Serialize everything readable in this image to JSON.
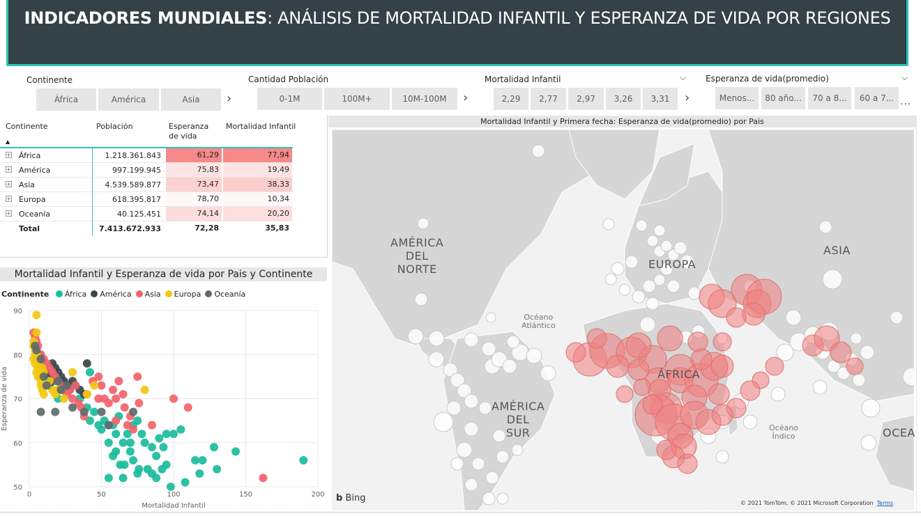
{
  "header": {
    "title_bold": "INDICADORES MUNDIALES",
    "title_rest": ": ANÁLISIS DE MORTALIDAD INFANTIL Y ESPERANZA DE VIDA POR REGIONES"
  },
  "slicers": {
    "continente": {
      "label": "Continente",
      "items": [
        "África",
        "América",
        "Asia"
      ]
    },
    "poblacion": {
      "label": "Cantidad Población",
      "items": [
        "0-1M",
        "100M+",
        "10M-100M"
      ]
    },
    "mortalidad": {
      "label": "Mortalidad Infantil",
      "items": [
        "2,29",
        "2,77",
        "2,97",
        "3,26",
        "3,31"
      ]
    },
    "esperanza": {
      "label": "Esperanza de vida(promedio)",
      "items": [
        "Menos...",
        "80 año...",
        "70 a 8...",
        "60 a 7..."
      ]
    },
    "next_icon": "chevron-right-icon",
    "dropdown_icon": "chevron-down-icon",
    "more_icon": "..."
  },
  "table": {
    "headers": [
      "Continente",
      "Población",
      "Esperanza de vida",
      "Mortalidad Infantil"
    ],
    "rows": [
      {
        "name": "África",
        "pop": "1.218.361.843",
        "esp": "61,29",
        "mort": "77,94",
        "esp_shade": 1.0,
        "mort_shade": 1.0
      },
      {
        "name": "América",
        "pop": "997.199.945",
        "esp": "75,83",
        "mort": "19,49",
        "esp_shade": 0.18,
        "mort_shade": 0.18
      },
      {
        "name": "Asia",
        "pop": "4.539.589.877",
        "esp": "73,47",
        "mort": "38,33",
        "esp_shade": 0.35,
        "mort_shade": 0.38
      },
      {
        "name": "Europa",
        "pop": "618.395.817",
        "esp": "78,70",
        "mort": "10,34",
        "esp_shade": 0.0,
        "mort_shade": 0.0
      },
      {
        "name": "Oceanía",
        "pop": "40.125.451",
        "esp": "74,14",
        "mort": "20,20",
        "esp_shade": 0.25,
        "mort_shade": 0.22
      }
    ],
    "total": {
      "name": "Total",
      "pop": "7.413.672.933",
      "esp": "72,28",
      "mort": "35,83"
    },
    "shade_color": "#f46b6b"
  },
  "scatter": {
    "title": "Mortalidad Infantil y Esperanza de vida por Pais y Continente",
    "legend_title": "Continente"
  },
  "chart_data": {
    "type": "scatter",
    "title": "Mortalidad Infantil y Esperanza de vida por Pais y Continente",
    "xlabel": "Mortalidad Infantil",
    "ylabel": "Esperanza de vida",
    "xlim": [
      0,
      200
    ],
    "ylim": [
      50,
      90
    ],
    "xticks": [
      0,
      50,
      100,
      150,
      200
    ],
    "yticks": [
      50,
      60,
      70,
      80,
      90
    ],
    "grid": true,
    "legend_position": "top-left",
    "series": [
      {
        "name": "África",
        "color": "#1abc9c",
        "points": [
          [
            8,
            77
          ],
          [
            12,
            75
          ],
          [
            18,
            74
          ],
          [
            22,
            72
          ],
          [
            28,
            73
          ],
          [
            35,
            70
          ],
          [
            40,
            68
          ],
          [
            42,
            65
          ],
          [
            45,
            67
          ],
          [
            48,
            64
          ],
          [
            50,
            63
          ],
          [
            52,
            65
          ],
          [
            55,
            64
          ],
          [
            55,
            60
          ],
          [
            55,
            52
          ],
          [
            58,
            64
          ],
          [
            60,
            62
          ],
          [
            60,
            58
          ],
          [
            62,
            66
          ],
          [
            63,
            55
          ],
          [
            65,
            60
          ],
          [
            65,
            52
          ],
          [
            68,
            62
          ],
          [
            70,
            58
          ],
          [
            70,
            60
          ],
          [
            72,
            56
          ],
          [
            72,
            64
          ],
          [
            75,
            65
          ],
          [
            76,
            54
          ],
          [
            78,
            62
          ],
          [
            80,
            60
          ],
          [
            82,
            54
          ],
          [
            85,
            59
          ],
          [
            85,
            53
          ],
          [
            88,
            52
          ],
          [
            88,
            57
          ],
          [
            90,
            61
          ],
          [
            92,
            54
          ],
          [
            93,
            59
          ],
          [
            95,
            62
          ],
          [
            95,
            55
          ],
          [
            98,
            50
          ],
          [
            100,
            62
          ],
          [
            105,
            63
          ],
          [
            108,
            51
          ],
          [
            115,
            56
          ],
          [
            118,
            53
          ],
          [
            120,
            56
          ],
          [
            128,
            59
          ],
          [
            130,
            54
          ],
          [
            143,
            58
          ],
          [
            190,
            56
          ],
          [
            58,
            57
          ],
          [
            66,
            55
          ],
          [
            75,
            53
          ],
          [
            42,
            76
          ],
          [
            20,
            70
          ]
        ]
      },
      {
        "name": "América",
        "color": "#374649",
        "points": [
          [
            5,
            79
          ],
          [
            7,
            80
          ],
          [
            8,
            78
          ],
          [
            10,
            77
          ],
          [
            12,
            76
          ],
          [
            14,
            75
          ],
          [
            15,
            74
          ],
          [
            16,
            78
          ],
          [
            18,
            77
          ],
          [
            20,
            76
          ],
          [
            22,
            75
          ],
          [
            24,
            74
          ],
          [
            25,
            73
          ],
          [
            28,
            72
          ],
          [
            30,
            74
          ],
          [
            32,
            73
          ],
          [
            35,
            72
          ],
          [
            38,
            71
          ],
          [
            40,
            78
          ],
          [
            14,
            73
          ],
          [
            20,
            72
          ]
        ]
      },
      {
        "name": "Asia",
        "color": "#f2626b",
        "points": [
          [
            3,
            85
          ],
          [
            4,
            84
          ],
          [
            5,
            83
          ],
          [
            6,
            82
          ],
          [
            8,
            80
          ],
          [
            10,
            79
          ],
          [
            12,
            78
          ],
          [
            14,
            77
          ],
          [
            16,
            76
          ],
          [
            18,
            75
          ],
          [
            20,
            74
          ],
          [
            22,
            73
          ],
          [
            24,
            72
          ],
          [
            26,
            71
          ],
          [
            28,
            72
          ],
          [
            30,
            70
          ],
          [
            32,
            73
          ],
          [
            34,
            69
          ],
          [
            36,
            68
          ],
          [
            38,
            66
          ],
          [
            40,
            71
          ],
          [
            44,
            74
          ],
          [
            48,
            75
          ],
          [
            50,
            73
          ],
          [
            52,
            70
          ],
          [
            55,
            69
          ],
          [
            58,
            72
          ],
          [
            60,
            65
          ],
          [
            62,
            74
          ],
          [
            65,
            71
          ],
          [
            68,
            64
          ],
          [
            70,
            66
          ],
          [
            72,
            63
          ],
          [
            75,
            75
          ],
          [
            76,
            69
          ],
          [
            85,
            64
          ],
          [
            100,
            70
          ],
          [
            110,
            68
          ],
          [
            162,
            52
          ],
          [
            48,
            70
          ],
          [
            60,
            70
          ],
          [
            66,
            68
          ]
        ]
      },
      {
        "name": "Europa",
        "color": "#f2c80f",
        "points": [
          [
            3,
            83
          ],
          [
            3,
            82
          ],
          [
            4,
            81
          ],
          [
            4,
            80
          ],
          [
            5,
            80
          ],
          [
            5,
            79
          ],
          [
            6,
            78
          ],
          [
            6,
            77
          ],
          [
            7,
            76
          ],
          [
            7,
            75
          ],
          [
            8,
            74
          ],
          [
            8,
            73
          ],
          [
            9,
            72
          ],
          [
            10,
            71
          ],
          [
            3,
            79
          ],
          [
            4,
            78
          ],
          [
            5,
            76
          ],
          [
            6,
            75
          ],
          [
            9,
            77
          ],
          [
            10,
            76
          ],
          [
            12,
            73
          ],
          [
            14,
            74
          ],
          [
            16,
            72
          ],
          [
            18,
            71
          ],
          [
            20,
            72
          ],
          [
            24,
            70
          ],
          [
            30,
            76
          ],
          [
            40,
            71
          ],
          [
            45,
            73
          ],
          [
            80,
            72
          ],
          [
            5,
            89
          ],
          [
            5,
            85
          ]
        ]
      },
      {
        "name": "Oceanía",
        "color": "#5f6b6d",
        "points": [
          [
            4,
            82
          ],
          [
            5,
            81
          ],
          [
            8,
            79
          ],
          [
            10,
            75
          ],
          [
            12,
            73
          ],
          [
            20,
            74
          ],
          [
            22,
            72
          ],
          [
            30,
            68
          ],
          [
            38,
            67
          ],
          [
            50,
            67
          ],
          [
            55,
            64
          ],
          [
            8,
            67
          ],
          [
            18,
            67
          ],
          [
            72,
            67
          ],
          [
            26,
            73
          ]
        ]
      }
    ]
  },
  "map": {
    "title": "Mortalidad Infantil y Primera fecha: Esperanza de vida(promedio) por Pais",
    "labels": {
      "na": [
        "AMÉRICA",
        "DEL",
        "NORTE"
      ],
      "sa": [
        "AMÉRICA",
        "DEL",
        "SUR"
      ],
      "europa": "EUROPA",
      "asia": "ASIA",
      "africa": "ÁFRICA",
      "oceania": "OCEA",
      "atlantico": [
        "Océano",
        "Atlántico"
      ],
      "indico": [
        "Océano",
        "Índico"
      ]
    },
    "bing": "Bing",
    "copyright": "© 2021 TomTom, © 2021 Microsoft Corporation",
    "terms": "Terms",
    "bubble_color": "#f08080",
    "land_color": "#d6d6d6",
    "water_color": "#f2f2f2"
  }
}
